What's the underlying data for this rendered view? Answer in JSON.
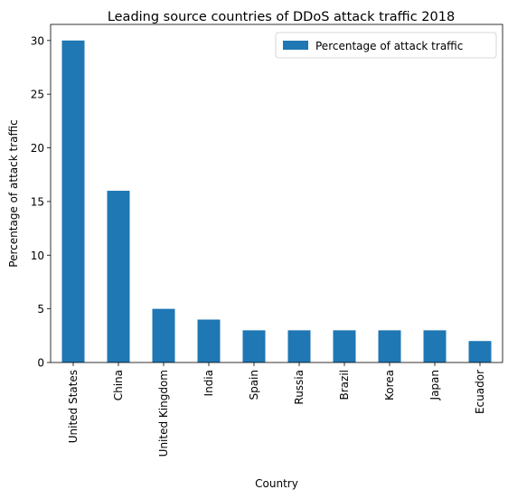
{
  "chart_data": {
    "type": "bar",
    "title": "Leading source countries of DDoS attack traffic 2018",
    "xlabel": "Country",
    "ylabel": "Percentage of attack traffic",
    "categories": [
      "United States",
      "China",
      "United Kingdom",
      "India",
      "Spain",
      "Russia",
      "Brazil",
      "Korea",
      "Japan",
      "Ecuador"
    ],
    "series": [
      {
        "name": "Percentage of attack traffic",
        "values": [
          30,
          16,
          5,
          4,
          3,
          3,
          3,
          3,
          3,
          2
        ],
        "color": "#1f77b4"
      }
    ],
    "ylim": [
      0,
      31.5
    ],
    "yticks": [
      0,
      5,
      10,
      15,
      20,
      25,
      30
    ],
    "grid": false,
    "legend_position": "top-right"
  }
}
